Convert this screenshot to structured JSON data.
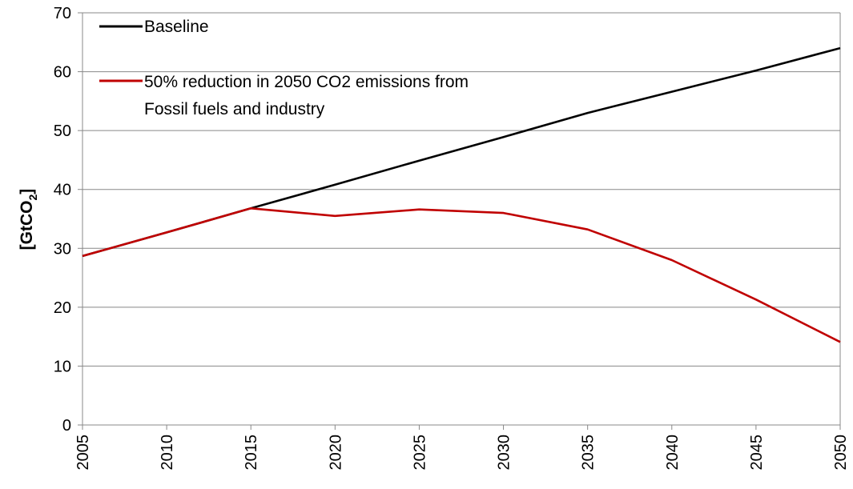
{
  "chart_data": {
    "type": "line",
    "title": "",
    "ylabel": {
      "main": "[GtCO",
      "sub": "2",
      "close": "]"
    },
    "xlabel": "",
    "ylim": [
      0,
      70
    ],
    "yticks": [
      0,
      10,
      20,
      30,
      40,
      50,
      60,
      70
    ],
    "ytick_labels": [
      "0",
      "10",
      "20",
      "30",
      "40",
      "50",
      "60",
      "70"
    ],
    "x": [
      2005,
      2010,
      2015,
      2020,
      2025,
      2030,
      2035,
      2040,
      2045,
      2050
    ],
    "xtick_labels": [
      "2005",
      "2010",
      "2015",
      "2020",
      "2025",
      "2030",
      "2035",
      "2040",
      "2045",
      "2050"
    ],
    "grid": "horizontal",
    "legend_position": "top-left",
    "series": [
      {
        "name": "Baseline",
        "color": "#000000",
        "values": [
          28.7,
          32.7,
          36.8,
          40.8,
          44.9,
          48.9,
          53.0,
          56.6,
          60.2,
          64.0
        ]
      },
      {
        "name_lines": [
          "50% reduction in 2050 CO2 emissions from",
          "Fossil fuels and industry"
        ],
        "color": "#C00000",
        "values": [
          28.7,
          32.7,
          36.8,
          35.5,
          36.6,
          36.0,
          33.2,
          28.0,
          21.3,
          14.1
        ]
      }
    ]
  }
}
